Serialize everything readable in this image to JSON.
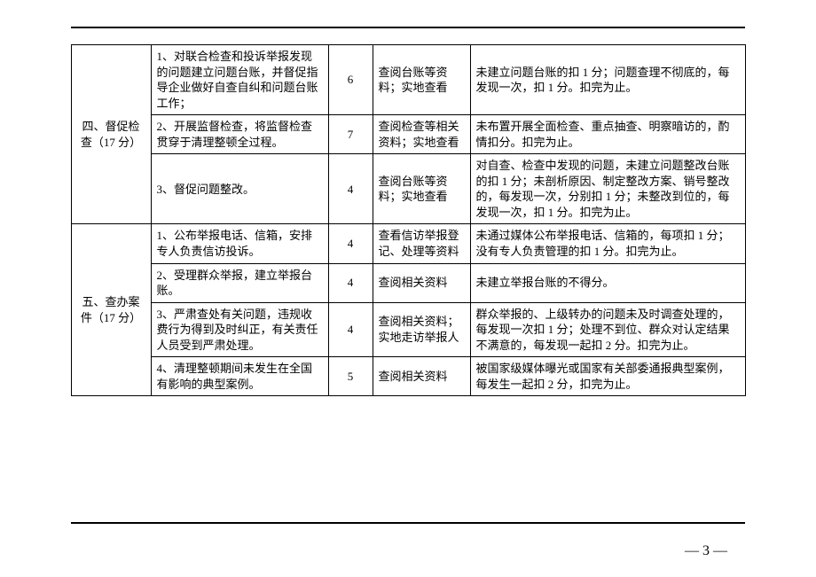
{
  "sections": [
    {
      "category": "四、督促检查（17 分）",
      "rows": [
        {
          "item": "1、对联合检查和投诉举报发现的问题建立问题台账，并督促指导企业做好自查自纠和问题台账工作；",
          "score": "6",
          "method": "查阅台账等资料；实地查看",
          "criteria": "未建立问题台账的扣 1 分；问题查理不彻底的，每发现一次，扣 1 分。扣完为止。"
        },
        {
          "item": "2、开展监督检查，将监督检查贯穿于清理整顿全过程。",
          "score": "7",
          "method": "查阅检查等相关资料；实地查看",
          "criteria": "未布置开展全面检查、重点抽查、明察暗访的，酌情扣分。扣完为止。"
        },
        {
          "item": "3、督促问题整改。",
          "score": "4",
          "method": "查阅台账等资料；实地查看",
          "criteria": "对自查、检查中发现的问题，未建立问题整改台账的扣 1 分；未剖析原因、制定整改方案、销号整改的，每发现一次，分别扣 1 分；未整改到位的，每发现一次，扣 1 分。扣完为止。"
        }
      ]
    },
    {
      "category": "五、查办案件（17 分）",
      "rows": [
        {
          "item": "1、公布举报电话、信箱，安排专人负责信访投诉。",
          "score": "4",
          "method": "查看信访举报登记、处理等资料",
          "criteria": "未通过媒体公布举报电话、信箱的，每项扣 1 分；没有专人负责管理的扣 1 分。扣完为止。"
        },
        {
          "item": "2、受理群众举报，建立举报台账。",
          "score": "4",
          "method": "查阅相关资料",
          "criteria": "未建立举报台账的不得分。"
        },
        {
          "item": "3、严肃查处有关问题，违规收费行为得到及时纠正，有关责任人员受到严肃处理。",
          "score": "4",
          "method": "查阅相关资料；实地走访举报人",
          "criteria": "群众举报的、上级转办的问题未及时调查处理的，每发现一次扣 1 分；处理不到位、群众对认定结果不满意的，每发现一起扣 2 分。扣完为止。"
        },
        {
          "item": "4、清理整顿期间未发生在全国有影响的典型案例。",
          "score": "5",
          "method": "查阅相关资料",
          "criteria": "被国家级媒体曝光或国家有关部委通报典型案例，每发生一起扣 2 分，扣完为止。"
        }
      ]
    }
  ],
  "pageNumber": "— 3 —"
}
